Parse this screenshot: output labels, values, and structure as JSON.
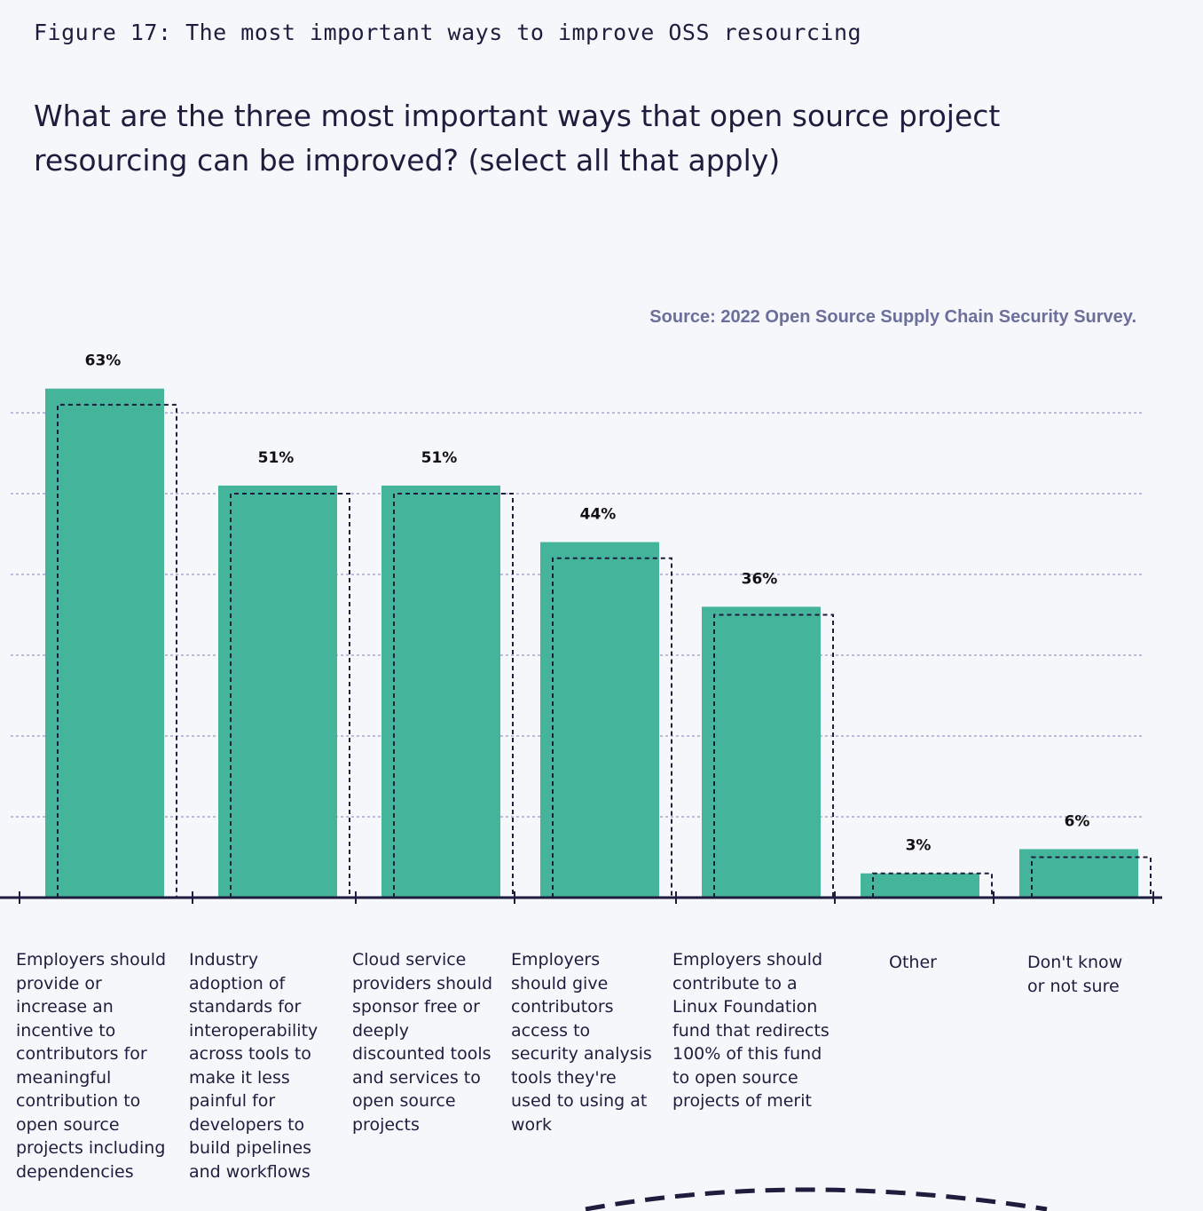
{
  "figure_caption": "Figure 17: The most important ways to improve OSS resourcing",
  "question": "What are the three most important ways that open source project resourcing can be improved? (select all that apply)",
  "source": "Source: 2022 Open Source Supply Chain Security Survey.",
  "colors": {
    "bar": "#44b59a",
    "axis": "#1f1d3d",
    "grid": "#a7a8c9",
    "dashed_outline": "#1f1d3d"
  },
  "chart_data": {
    "type": "bar",
    "title": "What are the three most important ways that open source project resourcing can be improved? (select all that apply)",
    "categories": [
      "Employers should provide or increase an incentive to contributors for meaningful contribution to open source projects including dependencies",
      "Industry adoption of standards for interoperability across tools to make it less painful for developers to build pipelines and workflows",
      "Cloud service providers should sponsor free or deeply discounted tools and services to open source projects",
      "Employers should give contributors access to security analysis tools they're used to using at work",
      "Employers should contribute to a Linux Foundation fund that redirects 100% of this fund to open source projects of merit",
      "Other",
      "Don't know or not sure"
    ],
    "values": [
      63,
      51,
      51,
      44,
      36,
      3,
      6
    ],
    "value_labels": [
      "63%",
      "51%",
      "51%",
      "44%",
      "36%",
      "3%",
      "6%"
    ],
    "comparison_values": [
      61,
      50,
      50,
      42,
      35,
      3,
      5
    ],
    "ylim": [
      0,
      70
    ],
    "grid": true,
    "xlabel": "",
    "ylabel": ""
  }
}
